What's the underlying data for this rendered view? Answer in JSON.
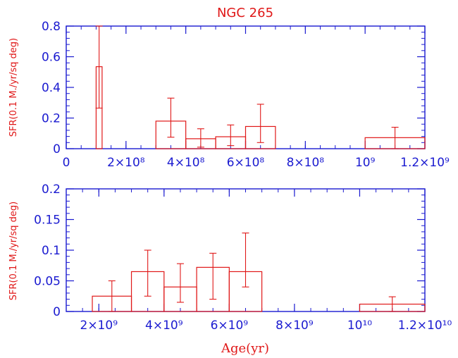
{
  "chart_data": [
    {
      "type": "bar",
      "title": "NGC 265",
      "xlabel": "",
      "ylabel": "SFR(0.1 M./yr/sq deg)",
      "xlim": [
        0,
        1200000000
      ],
      "ylim": [
        0,
        0.8
      ],
      "x_ticks": [
        {
          "value": 0,
          "label": "0"
        },
        {
          "value": 200000000,
          "label": "2×10⁸"
        },
        {
          "value": 400000000,
          "label": "4×10⁸"
        },
        {
          "value": 600000000,
          "label": "6×10⁸"
        },
        {
          "value": 800000000,
          "label": "8×10⁸"
        },
        {
          "value": 1000000000,
          "label": "10⁹"
        },
        {
          "value": 1200000000,
          "label": "1.2×10⁹"
        }
      ],
      "y_ticks": [
        {
          "value": 0,
          "label": "0"
        },
        {
          "value": 0.2,
          "label": "0.2"
        },
        {
          "value": 0.4,
          "label": "0.4"
        },
        {
          "value": 0.6,
          "label": "0.6"
        },
        {
          "value": 0.8,
          "label": "0.8"
        }
      ],
      "bins": [
        {
          "x0": 100000000,
          "x1": 120000000,
          "y": 0.535,
          "err_low": 0.265,
          "err_high": 0.8
        },
        {
          "x0": 300000000,
          "x1": 400000000,
          "y": 0.18,
          "err_low": 0.075,
          "err_high": 0.33
        },
        {
          "x0": 400000000,
          "x1": 500000000,
          "y": 0.065,
          "err_low": 0.01,
          "err_high": 0.13
        },
        {
          "x0": 500000000,
          "x1": 600000000,
          "y": 0.078,
          "err_low": 0.02,
          "err_high": 0.155
        },
        {
          "x0": 600000000,
          "x1": 700000000,
          "y": 0.145,
          "err_low": 0.04,
          "err_high": 0.29
        },
        {
          "x0": 1000000000,
          "x1": 1200000000,
          "y": 0.072,
          "err_low": 0.0,
          "err_high": 0.14
        }
      ]
    },
    {
      "type": "bar",
      "title": "",
      "xlabel": "Age(yr)",
      "ylabel": "SFR(0.1 M./yr/sq deg)",
      "xlim": [
        1000000000,
        12000000000
      ],
      "ylim": [
        0,
        0.2
      ],
      "x_ticks": [
        {
          "value": 2000000000,
          "label": "2×10⁹"
        },
        {
          "value": 4000000000,
          "label": "4×10⁹"
        },
        {
          "value": 6000000000,
          "label": "6×10⁹"
        },
        {
          "value": 8000000000,
          "label": "8×10⁹"
        },
        {
          "value": 10000000000,
          "label": "10¹⁰"
        },
        {
          "value": 12000000000,
          "label": "1.2×10¹⁰"
        }
      ],
      "y_ticks": [
        {
          "value": 0,
          "label": "0"
        },
        {
          "value": 0.05,
          "label": "0.05"
        },
        {
          "value": 0.1,
          "label": "0.1"
        },
        {
          "value": 0.15,
          "label": "0.15"
        },
        {
          "value": 0.2,
          "label": "0.2"
        }
      ],
      "bins": [
        {
          "x0": 1800000000,
          "x1": 3000000000,
          "y": 0.025,
          "err_low": 0.0,
          "err_high": 0.05
        },
        {
          "x0": 3000000000,
          "x1": 4000000000,
          "y": 0.065,
          "err_low": 0.025,
          "err_high": 0.1
        },
        {
          "x0": 4000000000,
          "x1": 5000000000,
          "y": 0.04,
          "err_low": 0.015,
          "err_high": 0.078
        },
        {
          "x0": 5000000000,
          "x1": 6000000000,
          "y": 0.072,
          "err_low": 0.02,
          "err_high": 0.095
        },
        {
          "x0": 6000000000,
          "x1": 7000000000,
          "y": 0.065,
          "err_low": 0.04,
          "err_high": 0.128
        },
        {
          "x0": 10000000000,
          "x1": 12000000000,
          "y": 0.012,
          "err_low": 0.0,
          "err_high": 0.024
        }
      ]
    }
  ]
}
